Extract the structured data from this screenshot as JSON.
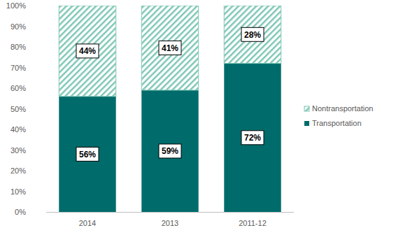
{
  "chart_data": {
    "type": "bar",
    "stacked": true,
    "data_labels": true,
    "grid": false,
    "legend": "right",
    "categories": [
      "2014",
      "2013",
      "2011-12"
    ],
    "series": [
      {
        "name": "Transportation",
        "color": "#006b6b",
        "values": [
          56,
          59,
          72
        ],
        "value_labels": [
          "56%",
          "59%",
          "72%"
        ]
      },
      {
        "name": "Nontransportation",
        "color": "#7fc7b5",
        "values": [
          44,
          41,
          28
        ],
        "value_labels": [
          "44%",
          "41%",
          "28%"
        ]
      }
    ],
    "ylim": [
      0,
      100
    ],
    "yticks": [
      {
        "value": 0,
        "label": "0%"
      },
      {
        "value": 10,
        "label": "10%"
      },
      {
        "value": 20,
        "label": "20%"
      },
      {
        "value": 30,
        "label": "30%"
      },
      {
        "value": 40,
        "label": "40%"
      },
      {
        "value": 50,
        "label": "50%"
      },
      {
        "value": 60,
        "label": "60%"
      },
      {
        "value": 70,
        "label": "70%"
      },
      {
        "value": 80,
        "label": "80%"
      },
      {
        "value": 90,
        "label": "90%"
      },
      {
        "value": 100,
        "label": "100%"
      }
    ]
  }
}
